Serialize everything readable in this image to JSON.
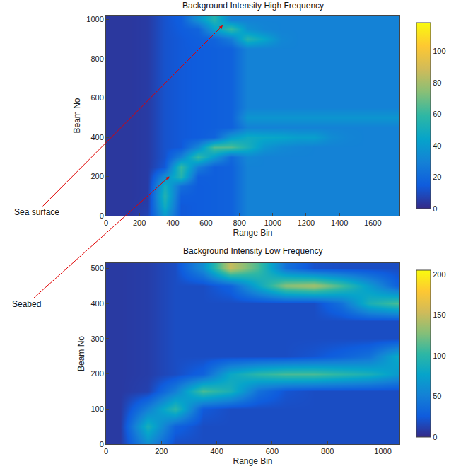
{
  "chart_data": [
    {
      "type": "heatmap",
      "title": "Background Intensity High Frequency",
      "x_label": "Range Bin",
      "y_label": "Beam No",
      "xlim": [
        0,
        1760
      ],
      "xticks": [
        0,
        200,
        400,
        600,
        800,
        1000,
        1200,
        1400,
        1600
      ],
      "ylim": [
        0,
        1020
      ],
      "yticks": [
        0,
        200,
        400,
        600,
        800,
        1000
      ],
      "grid": true,
      "zlim": [
        0,
        118
      ],
      "zticks": [
        0,
        20,
        40,
        60,
        80,
        100
      ],
      "x": [
        50,
        150,
        250,
        350,
        450,
        550,
        650,
        750,
        850,
        950,
        1050,
        1150,
        1250,
        1350,
        1450,
        1550,
        1650,
        1750
      ],
      "y": [
        0,
        50,
        100,
        150,
        200,
        250,
        300,
        350,
        400,
        450,
        500,
        550,
        600,
        650,
        700,
        750,
        800,
        850,
        900,
        950,
        1000
      ],
      "z": [
        [
          4,
          4,
          8,
          40,
          14,
          15,
          16,
          17,
          30,
          30,
          30,
          30,
          30,
          30,
          30,
          30,
          30,
          30
        ],
        [
          4,
          4,
          6,
          50,
          14,
          15,
          16,
          17,
          30,
          30,
          30,
          30,
          30,
          30,
          30,
          30,
          30,
          30
        ],
        [
          4,
          4,
          5,
          55,
          16,
          15,
          16,
          17,
          30,
          30,
          30,
          30,
          30,
          30,
          30,
          30,
          30,
          30
        ],
        [
          4,
          4,
          5,
          50,
          22,
          15,
          16,
          17,
          30,
          30,
          30,
          30,
          30,
          30,
          30,
          30,
          30,
          30
        ],
        [
          4,
          4,
          5,
          35,
          55,
          16,
          16,
          17,
          30,
          30,
          30,
          30,
          30,
          30,
          30,
          30,
          30,
          30
        ],
        [
          4,
          4,
          5,
          14,
          60,
          28,
          16,
          17,
          30,
          30,
          30,
          30,
          30,
          30,
          30,
          30,
          30,
          30
        ],
        [
          4,
          4,
          5,
          12,
          30,
          60,
          40,
          20,
          32,
          30,
          30,
          30,
          30,
          30,
          30,
          30,
          30,
          30
        ],
        [
          4,
          4,
          5,
          12,
          14,
          32,
          65,
          65,
          52,
          38,
          33,
          31,
          30,
          30,
          30,
          30,
          30,
          30
        ],
        [
          4,
          4,
          5,
          12,
          14,
          15,
          18,
          40,
          48,
          46,
          45,
          42,
          42,
          34,
          31,
          30,
          30,
          30
        ],
        [
          4,
          4,
          5,
          12,
          14,
          15,
          16,
          17,
          30,
          30,
          30,
          30,
          30,
          30,
          30,
          30,
          30,
          30
        ],
        [
          4,
          4,
          5,
          12,
          14,
          15,
          16,
          17,
          38,
          38,
          38,
          38,
          38,
          38,
          38,
          38,
          38,
          38
        ],
        [
          4,
          4,
          5,
          12,
          14,
          15,
          16,
          17,
          30,
          30,
          30,
          30,
          30,
          30,
          30,
          30,
          30,
          30
        ],
        [
          4,
          4,
          5,
          12,
          14,
          15,
          16,
          17,
          30,
          30,
          30,
          30,
          30,
          30,
          30,
          30,
          30,
          30
        ],
        [
          4,
          4,
          5,
          12,
          14,
          15,
          16,
          17,
          30,
          30,
          30,
          30,
          30,
          30,
          30,
          30,
          30,
          30
        ],
        [
          4,
          4,
          5,
          12,
          14,
          15,
          16,
          17,
          30,
          30,
          30,
          30,
          30,
          30,
          30,
          30,
          30,
          30
        ],
        [
          4,
          4,
          5,
          12,
          14,
          15,
          16,
          17,
          30,
          30,
          30,
          30,
          30,
          30,
          30,
          30,
          30,
          30
        ],
        [
          4,
          4,
          5,
          12,
          14,
          15,
          16,
          17,
          30,
          30,
          30,
          30,
          30,
          30,
          30,
          30,
          30,
          30
        ],
        [
          4,
          4,
          5,
          12,
          14,
          15,
          16,
          17,
          30,
          30,
          30,
          30,
          30,
          30,
          30,
          30,
          30,
          30
        ],
        [
          4,
          4,
          5,
          12,
          14,
          16,
          18,
          28,
          55,
          45,
          32,
          30,
          30,
          30,
          30,
          30,
          30,
          30
        ],
        [
          4,
          4,
          5,
          12,
          15,
          18,
          42,
          60,
          36,
          31,
          30,
          30,
          30,
          30,
          30,
          30,
          30,
          30
        ],
        [
          4,
          4,
          5,
          12,
          16,
          36,
          55,
          30,
          30,
          30,
          30,
          30,
          30,
          30,
          30,
          30,
          30,
          30
        ]
      ],
      "annotations": [
        {
          "text": "Sea surface",
          "x": 700,
          "y": 970
        },
        {
          "text": "Seabed",
          "x": 380,
          "y": 200
        }
      ]
    },
    {
      "type": "heatmap",
      "title": "Background Intensity Low Frequency",
      "x_label": "Range Bin",
      "y_label": "Beam No",
      "xlim": [
        0,
        1060
      ],
      "xticks": [
        0,
        200,
        400,
        600,
        800,
        1000
      ],
      "ylim": [
        0,
        515
      ],
      "yticks": [
        0,
        100,
        200,
        300,
        400,
        500
      ],
      "grid": true,
      "zlim": [
        0,
        205
      ],
      "zticks": [
        0,
        50,
        100,
        150,
        200
      ],
      "x": [
        50,
        150,
        250,
        350,
        450,
        550,
        650,
        750,
        850,
        950,
        1050
      ],
      "y": [
        0,
        50,
        100,
        150,
        200,
        250,
        300,
        350,
        400,
        450,
        500
      ],
      "z": [
        [
          8,
          60,
          18,
          18,
          18,
          18,
          18,
          18,
          18,
          18,
          18
        ],
        [
          8,
          90,
          30,
          18,
          18,
          18,
          18,
          18,
          18,
          18,
          18
        ],
        [
          8,
          50,
          100,
          25,
          18,
          18,
          18,
          18,
          18,
          18,
          18
        ],
        [
          8,
          12,
          50,
          110,
          90,
          40,
          22,
          18,
          18,
          18,
          18
        ],
        [
          8,
          10,
          18,
          30,
          80,
          100,
          110,
          110,
          100,
          90,
          70
        ],
        [
          8,
          10,
          18,
          18,
          18,
          18,
          18,
          22,
          30,
          40,
          80
        ],
        [
          8,
          10,
          18,
          18,
          18,
          18,
          18,
          18,
          18,
          18,
          18
        ],
        [
          8,
          10,
          18,
          18,
          18,
          18,
          18,
          18,
          18,
          18,
          18
        ],
        [
          8,
          10,
          18,
          18,
          18,
          18,
          18,
          18,
          40,
          90,
          110
        ],
        [
          8,
          10,
          18,
          18,
          30,
          80,
          130,
          140,
          110,
          70,
          30
        ],
        [
          8,
          10,
          18,
          60,
          150,
          110,
          40,
          20,
          18,
          18,
          18
        ]
      ]
    }
  ]
}
